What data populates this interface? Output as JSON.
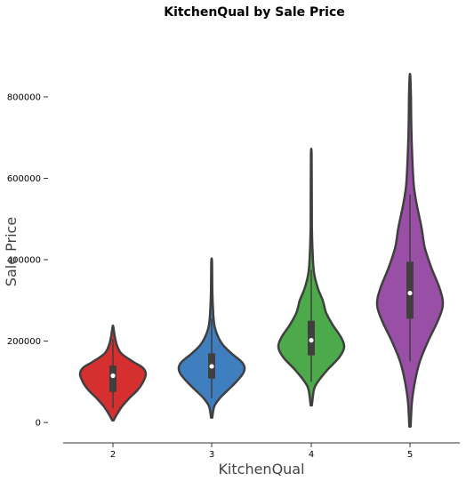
{
  "chart_data": {
    "type": "violin",
    "title": "KitchenQual by Sale Price",
    "xlabel": "KitchenQual",
    "ylabel": "Sale Price",
    "ylim": [
      -50000,
      920000
    ],
    "yticks": [
      0,
      200000,
      400000,
      600000,
      800000
    ],
    "ytick_labels": [
      "0",
      "200000",
      "400000",
      "600000",
      "800000"
    ],
    "categories": [
      "2",
      "3",
      "4",
      "5"
    ],
    "colors": [
      "#d62f2f",
      "#3f7fbf",
      "#4daa4a",
      "#9a4fa6"
    ],
    "grid": false,
    "legend": "none",
    "violins": [
      {
        "category": "2",
        "min": 5000,
        "max": 235000,
        "q1": 75000,
        "median": 115000,
        "q3": 140000,
        "whisker_low": 35000,
        "whisker_high": 205000,
        "profile": [
          [
            5000,
            0.02
          ],
          [
            20000,
            0.12
          ],
          [
            40000,
            0.28
          ],
          [
            60000,
            0.5
          ],
          [
            80000,
            0.75
          ],
          [
            100000,
            0.92
          ],
          [
            120000,
            1.0
          ],
          [
            135000,
            0.9
          ],
          [
            150000,
            0.6
          ],
          [
            170000,
            0.25
          ],
          [
            190000,
            0.12
          ],
          [
            210000,
            0.06
          ],
          [
            235000,
            0.01
          ]
        ]
      },
      {
        "category": "3",
        "min": 12000,
        "max": 395000,
        "q1": 108000,
        "median": 138000,
        "q3": 170000,
        "whisker_low": 60000,
        "whisker_high": 255000,
        "profile": [
          [
            12000,
            0.02
          ],
          [
            40000,
            0.08
          ],
          [
            60000,
            0.25
          ],
          [
            80000,
            0.5
          ],
          [
            100000,
            0.75
          ],
          [
            120000,
            0.95
          ],
          [
            135000,
            1.0
          ],
          [
            150000,
            0.9
          ],
          [
            170000,
            0.6
          ],
          [
            190000,
            0.35
          ],
          [
            210000,
            0.2
          ],
          [
            240000,
            0.08
          ],
          [
            280000,
            0.04
          ],
          [
            330000,
            0.02
          ],
          [
            395000,
            0.01
          ]
        ]
      },
      {
        "category": "4",
        "min": 42000,
        "max": 660000,
        "q1": 165000,
        "median": 202000,
        "q3": 250000,
        "whisker_low": 100000,
        "whisker_high": 375000,
        "profile": [
          [
            42000,
            0.02
          ],
          [
            80000,
            0.08
          ],
          [
            100000,
            0.2
          ],
          [
            130000,
            0.5
          ],
          [
            160000,
            0.85
          ],
          [
            185000,
            1.0
          ],
          [
            210000,
            0.9
          ],
          [
            240000,
            0.65
          ],
          [
            270000,
            0.45
          ],
          [
            300000,
            0.35
          ],
          [
            330000,
            0.2
          ],
          [
            370000,
            0.08
          ],
          [
            420000,
            0.04
          ],
          [
            480000,
            0.02
          ],
          [
            560000,
            0.015
          ],
          [
            660000,
            0.01
          ]
        ]
      },
      {
        "category": "5",
        "min": -10000,
        "max": 850000,
        "q1": 255000,
        "median": 318000,
        "q3": 395000,
        "whisker_low": 150000,
        "whisker_high": 560000,
        "profile": [
          [
            -10000,
            0.02
          ],
          [
            50000,
            0.06
          ],
          [
            100000,
            0.15
          ],
          [
            150000,
            0.3
          ],
          [
            200000,
            0.55
          ],
          [
            250000,
            0.85
          ],
          [
            290000,
            1.0
          ],
          [
            330000,
            0.9
          ],
          [
            380000,
            0.65
          ],
          [
            430000,
            0.45
          ],
          [
            480000,
            0.35
          ],
          [
            530000,
            0.22
          ],
          [
            580000,
            0.12
          ],
          [
            650000,
            0.07
          ],
          [
            730000,
            0.04
          ],
          [
            800000,
            0.03
          ],
          [
            850000,
            0.01
          ]
        ]
      }
    ]
  }
}
